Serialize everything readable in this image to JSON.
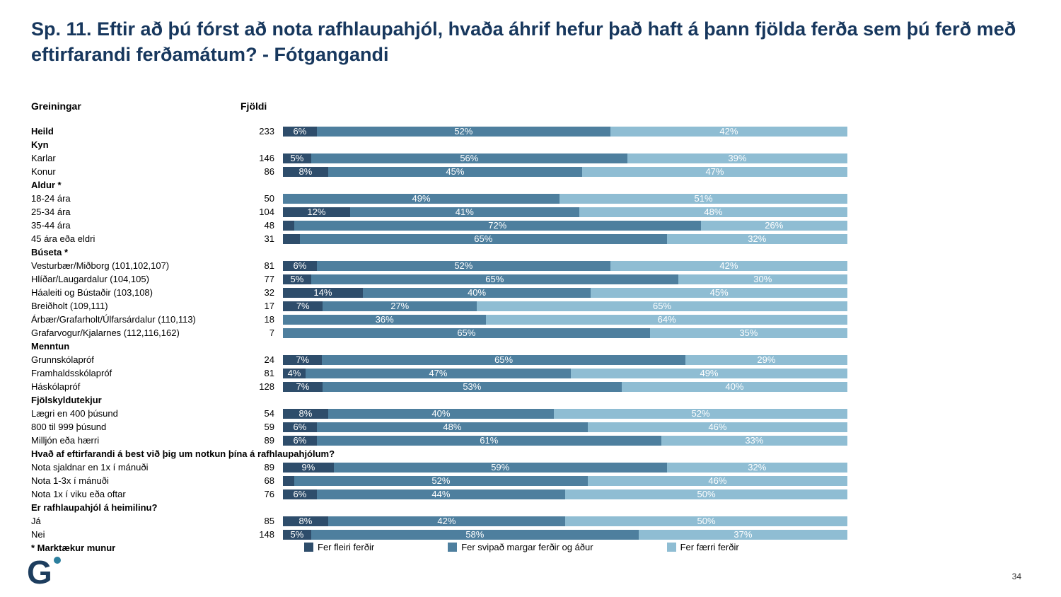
{
  "chart_data": {
    "type": "bar",
    "stacked": true,
    "orientation": "horizontal",
    "title": "Sp. 11. Eftir að þú fórst að nota rafhlaupahjól, hvaða áhrif hefur það haft á þann fjölda ferða sem þú ferð með eftirfarandi ferðamátum? - Fótgangandi",
    "column_headers": {
      "analysis": "Greiningar",
      "count": "Fjöldi"
    },
    "xlim": [
      0,
      100
    ],
    "legend_position": "bottom",
    "series": [
      "Fer fleiri ferðir",
      "Fer svipað margar ferðir og áður",
      "Fer færri ferðir"
    ],
    "colors": [
      "#2e4d6b",
      "#4e7f9e",
      "#8fbdd3"
    ],
    "rows": [
      {
        "type": "data",
        "bold": true,
        "label": "Heild",
        "count": "233",
        "values": [
          6,
          52,
          42
        ],
        "value_labels": [
          "6%",
          "52%",
          "42%"
        ]
      },
      {
        "type": "section",
        "label": "Kyn"
      },
      {
        "type": "data",
        "label": "Karlar",
        "count": "146",
        "values": [
          5,
          56,
          39
        ],
        "value_labels": [
          "5%",
          "56%",
          "39%"
        ]
      },
      {
        "type": "data",
        "label": "Konur",
        "count": "86",
        "values": [
          8,
          45,
          47
        ],
        "value_labels": [
          "8%",
          "45%",
          "47%"
        ]
      },
      {
        "type": "section",
        "label": "Aldur *"
      },
      {
        "type": "data",
        "label": "18-24 ára",
        "count": "50",
        "values": [
          0,
          49,
          51
        ],
        "value_labels": [
          "",
          "49%",
          "51%"
        ]
      },
      {
        "type": "data",
        "label": "25-34 ára",
        "count": "104",
        "values": [
          12,
          41,
          48
        ],
        "value_labels": [
          "12%",
          "41%",
          "48%"
        ]
      },
      {
        "type": "data",
        "label": "35-44 ára",
        "count": "48",
        "values": [
          2,
          72,
          26
        ],
        "value_labels": [
          "",
          "72%",
          "26%"
        ]
      },
      {
        "type": "data",
        "label": "45 ára eða eldri",
        "count": "31",
        "values": [
          3,
          65,
          32
        ],
        "value_labels": [
          "",
          "65%",
          "32%"
        ]
      },
      {
        "type": "section",
        "label": "Búseta *"
      },
      {
        "type": "data",
        "label": "Vesturbær/Miðborg (101,102,107)",
        "count": "81",
        "values": [
          6,
          52,
          42
        ],
        "value_labels": [
          "6%",
          "52%",
          "42%"
        ]
      },
      {
        "type": "data",
        "label": "Hlíðar/Laugardalur (104,105)",
        "count": "77",
        "values": [
          5,
          65,
          30
        ],
        "value_labels": [
          "5%",
          "65%",
          "30%"
        ]
      },
      {
        "type": "data",
        "label": "Háaleiti og Bústaðir (103,108)",
        "count": "32",
        "values": [
          14,
          40,
          45
        ],
        "value_labels": [
          "14%",
          "40%",
          "45%"
        ]
      },
      {
        "type": "data",
        "label": "Breiðholt (109,111)",
        "count": "17",
        "values": [
          7,
          27,
          65
        ],
        "value_labels": [
          "7%",
          "27%",
          "65%"
        ]
      },
      {
        "type": "data",
        "label": "Árbær/Grafarholt/Úlfarsárdalur (110,113)",
        "count": "18",
        "values": [
          0,
          36,
          64
        ],
        "value_labels": [
          "",
          "36%",
          "64%"
        ]
      },
      {
        "type": "data",
        "label": "Grafarvogur/Kjalarnes (112,116,162)",
        "count": "7",
        "values": [
          0,
          65,
          35
        ],
        "value_labels": [
          "",
          "65%",
          "35%"
        ]
      },
      {
        "type": "section",
        "label": "Menntun"
      },
      {
        "type": "data",
        "label": "Grunnskólapróf",
        "count": "24",
        "values": [
          7,
          65,
          29
        ],
        "value_labels": [
          "7%",
          "65%",
          "29%"
        ]
      },
      {
        "type": "data",
        "label": "Framhaldsskólapróf",
        "count": "81",
        "values": [
          4,
          47,
          49
        ],
        "value_labels": [
          "4%",
          "47%",
          "49%"
        ]
      },
      {
        "type": "data",
        "label": "Háskólapróf",
        "count": "128",
        "values": [
          7,
          53,
          40
        ],
        "value_labels": [
          "7%",
          "53%",
          "40%"
        ]
      },
      {
        "type": "section",
        "label": "Fjölskyldutekjur"
      },
      {
        "type": "data",
        "label": "Lægri en 400 þúsund",
        "count": "54",
        "values": [
          8,
          40,
          52
        ],
        "value_labels": [
          "8%",
          "40%",
          "52%"
        ]
      },
      {
        "type": "data",
        "label": "800 til 999 þúsund",
        "count": "59",
        "values": [
          6,
          48,
          46
        ],
        "value_labels": [
          "6%",
          "48%",
          "46%"
        ]
      },
      {
        "type": "data",
        "label": "Milljón eða hærri",
        "count": "89",
        "values": [
          6,
          61,
          33
        ],
        "value_labels": [
          "6%",
          "61%",
          "33%"
        ]
      },
      {
        "type": "section",
        "label": "Hvað af eftirfarandi á best við þig um notkun þína á rafhlaupahjólum?"
      },
      {
        "type": "data",
        "label": "Nota sjaldnar en 1x í mánuði",
        "count": "89",
        "values": [
          9,
          59,
          32
        ],
        "value_labels": [
          "9%",
          "59%",
          "32%"
        ]
      },
      {
        "type": "data",
        "label": "Nota 1-3x í mánuði",
        "count": "68",
        "values": [
          2,
          52,
          46
        ],
        "value_labels": [
          "",
          "52%",
          "46%"
        ]
      },
      {
        "type": "data",
        "label": "Nota 1x í viku eða oftar",
        "count": "76",
        "values": [
          6,
          44,
          50
        ],
        "value_labels": [
          "6%",
          "44%",
          "50%"
        ]
      },
      {
        "type": "section",
        "label": "Er rafhlaupahjól á heimilinu?"
      },
      {
        "type": "data",
        "label": "Já",
        "count": "85",
        "values": [
          8,
          42,
          50
        ],
        "value_labels": [
          "8%",
          "42%",
          "50%"
        ]
      },
      {
        "type": "data",
        "label": "Nei",
        "count": "148",
        "values": [
          5,
          58,
          37
        ],
        "value_labels": [
          "5%",
          "58%",
          "37%"
        ]
      },
      {
        "type": "section",
        "label": "* Marktækur munur"
      }
    ]
  },
  "footer": {
    "page_number": "34",
    "logo_text": "G"
  }
}
